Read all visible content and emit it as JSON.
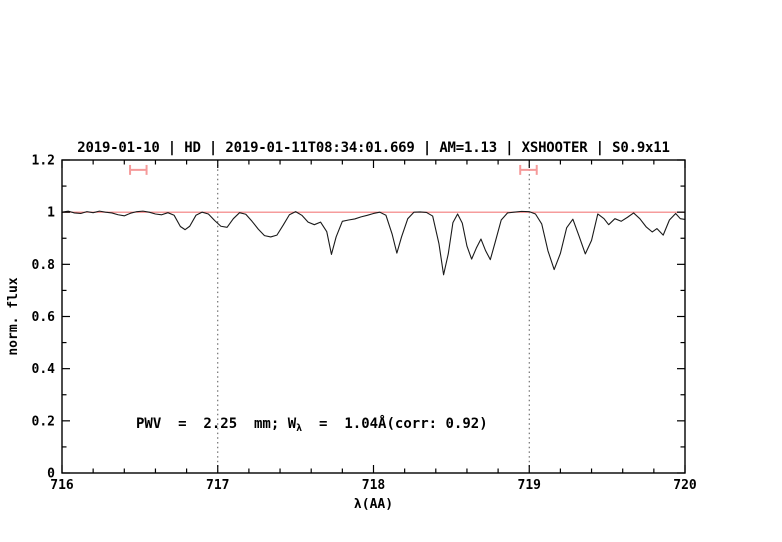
{
  "colors": {
    "title_blue": "#0000ee",
    "annotation_blue": "#0000ee",
    "spectrum_black": "#1a1a1a",
    "reference_red": "#f37c7c",
    "marker_salmon": "#f59a9a",
    "vline_gray": "#555555",
    "axis_black": "#000000"
  },
  "title": {
    "text": "2019-01-10 | HD | 2019-01-11T08:34:01.669 | AM=1.13 | XSHOOTER | S0.9x11"
  },
  "annotation": {
    "pre": "PWV  =  2.25  mm; W",
    "sub": "λ",
    "post": "  =  1.04Å(corr: 0.92)",
    "x": 716.47,
    "y_flux": 0.175
  },
  "chart_data": {
    "type": "line",
    "title": "2019-01-10 | HD | 2019-01-11T08:34:01.669 | AM=1.13 | XSHOOTER | S0.9x11",
    "xlabel": "λ(AA)",
    "ylabel": "norm. flux",
    "xlim": [
      716,
      720
    ],
    "ylim": [
      0,
      1.2
    ],
    "grid": false,
    "x_ticks": {
      "values": [
        716,
        717,
        718,
        719,
        720
      ],
      "labels": [
        "716",
        "717",
        "718",
        "719",
        "720"
      ],
      "minor_step": 0.2
    },
    "y_ticks": {
      "values": [
        0,
        0.2,
        0.4,
        0.6,
        0.8,
        1,
        1.2
      ],
      "labels": [
        "0",
        "0.2",
        "0.4",
        "0.6",
        "0.8",
        "1",
        "1.2"
      ],
      "minor_step": 0.1
    },
    "reference_line": {
      "y": 1.0
    },
    "vlines": {
      "x": [
        717,
        719
      ],
      "style": "dotted"
    },
    "range_markers": [
      {
        "x_center": 716.49,
        "x_half_width": 0.053,
        "y": 1.162,
        "cap_half_height": 0.019
      },
      {
        "x_center": 718.995,
        "x_half_width": 0.053,
        "y": 1.162,
        "cap_half_height": 0.019
      }
    ],
    "series": [
      {
        "name": "telluric-spectrum",
        "x": [
          716.0,
          716.04,
          716.08,
          716.12,
          716.16,
          716.2,
          716.24,
          716.28,
          716.32,
          716.36,
          716.4,
          716.44,
          716.48,
          716.52,
          716.56,
          716.6,
          716.64,
          716.68,
          716.72,
          716.76,
          716.79,
          716.82,
          716.86,
          716.9,
          716.94,
          716.98,
          717.02,
          717.06,
          717.1,
          717.14,
          717.18,
          717.22,
          717.26,
          717.3,
          717.34,
          717.38,
          717.42,
          717.46,
          717.5,
          717.54,
          717.58,
          717.62,
          717.66,
          717.7,
          717.73,
          717.76,
          717.8,
          717.84,
          717.88,
          717.92,
          717.96,
          718.0,
          718.04,
          718.08,
          718.12,
          718.15,
          718.18,
          718.22,
          718.26,
          718.3,
          718.34,
          718.38,
          718.42,
          718.45,
          718.48,
          718.51,
          718.54,
          718.57,
          718.6,
          718.63,
          718.66,
          718.69,
          718.72,
          718.75,
          718.78,
          718.82,
          718.86,
          718.9,
          718.95,
          719.0,
          719.04,
          719.08,
          719.12,
          719.16,
          719.2,
          719.24,
          719.28,
          719.32,
          719.36,
          719.4,
          719.44,
          719.48,
          719.51,
          719.55,
          719.59,
          719.63,
          719.67,
          719.71,
          719.75,
          719.79,
          719.82,
          719.86,
          719.9,
          719.94,
          719.97,
          720.0
        ],
        "y": [
          1.0,
          1.004,
          0.997,
          0.995,
          1.002,
          0.998,
          1.004,
          1.0,
          0.997,
          0.99,
          0.986,
          0.996,
          1.002,
          1.004,
          1.0,
          0.993,
          0.99,
          0.998,
          0.988,
          0.945,
          0.933,
          0.946,
          0.988,
          1.0,
          0.993,
          0.968,
          0.946,
          0.942,
          0.975,
          0.998,
          0.992,
          0.965,
          0.935,
          0.91,
          0.905,
          0.912,
          0.95,
          0.99,
          1.002,
          0.988,
          0.962,
          0.952,
          0.962,
          0.925,
          0.838,
          0.905,
          0.965,
          0.97,
          0.974,
          0.982,
          0.988,
          0.995,
          1.0,
          0.988,
          0.915,
          0.843,
          0.905,
          0.975,
          1.0,
          1.001,
          0.999,
          0.985,
          0.88,
          0.76,
          0.84,
          0.96,
          0.993,
          0.958,
          0.87,
          0.82,
          0.862,
          0.897,
          0.852,
          0.818,
          0.882,
          0.97,
          0.997,
          1.0,
          1.003,
          1.002,
          0.993,
          0.955,
          0.852,
          0.78,
          0.842,
          0.94,
          0.973,
          0.908,
          0.84,
          0.892,
          0.993,
          0.975,
          0.952,
          0.975,
          0.965,
          0.98,
          0.997,
          0.975,
          0.944,
          0.924,
          0.937,
          0.912,
          0.97,
          0.995,
          0.975,
          0.972
        ]
      }
    ]
  }
}
